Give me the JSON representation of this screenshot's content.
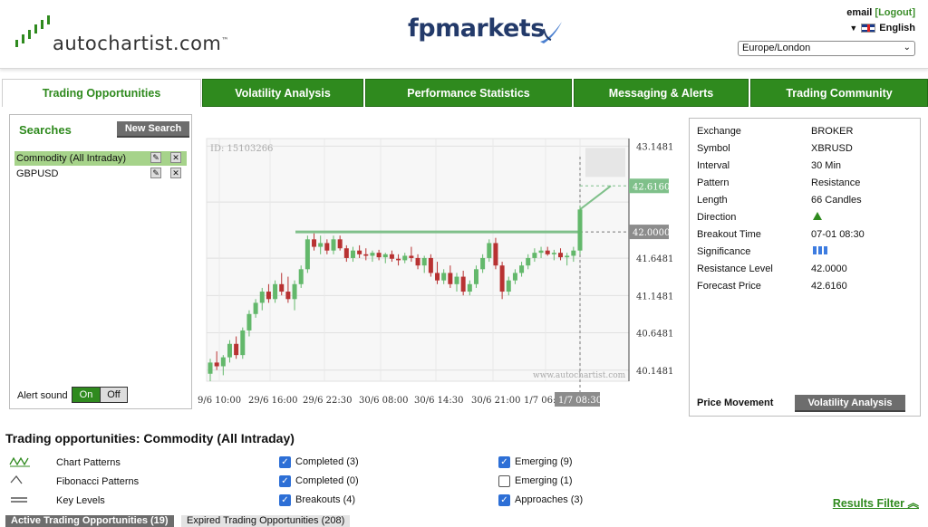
{
  "header": {
    "logo_text": "autochartist.com",
    "logo_tm": "™",
    "broker_logo": "fpmarkets",
    "user": "email",
    "logout": "[Logout]",
    "language": "English",
    "timezone": "Europe/London"
  },
  "tabs": [
    {
      "label": "Trading Opportunities",
      "active": true
    },
    {
      "label": "Volatility Analysis"
    },
    {
      "label": "Performance Statistics"
    },
    {
      "label": "Messaging & Alerts"
    },
    {
      "label": "Trading Community"
    }
  ],
  "searches": {
    "title": "Searches",
    "new_search": "New Search",
    "items": [
      {
        "label": "Commodity (All Intraday)",
        "selected": true
      },
      {
        "label": "GBPUSD"
      }
    ],
    "edit_icon": "pencil-icon",
    "delete_icon": "close-icon",
    "alert_sound_label": "Alert sound",
    "on": "On",
    "off": "Off"
  },
  "chart_data": {
    "type": "candlestick",
    "id_label": "ID: 15103266",
    "watermark": "www.autochartist.com",
    "x_tick_labels": [
      "9/6 10:00",
      "29/6 16:00",
      "29/6 22:30",
      "30/6 08:00",
      "30/6 14:30",
      "30/6 21:00",
      "1/7 06:0",
      "1/7 08:30"
    ],
    "y_tick_labels": [
      "43.1481",
      "41.6481",
      "41.1481",
      "40.6481",
      "40.1481"
    ],
    "ylim": [
      40.0,
      43.25
    ],
    "resistance_level": 42.0,
    "resistance_label": "42.0000",
    "forecast_price": 42.616,
    "forecast_label": "42.6160",
    "breakout_label": "1/7 08:30",
    "candles": [
      [
        40.1,
        40.3,
        40.0,
        40.25
      ],
      [
        40.25,
        40.4,
        40.15,
        40.2
      ],
      [
        40.2,
        40.35,
        40.08,
        40.32
      ],
      [
        40.32,
        40.55,
        40.25,
        40.5
      ],
      [
        40.5,
        40.6,
        40.3,
        40.35
      ],
      [
        40.35,
        40.72,
        40.3,
        40.68
      ],
      [
        40.68,
        40.95,
        40.6,
        40.9
      ],
      [
        40.9,
        41.1,
        40.85,
        41.05
      ],
      [
        41.05,
        41.25,
        40.95,
        41.2
      ],
      [
        41.2,
        41.3,
        41.05,
        41.1
      ],
      [
        41.1,
        41.35,
        41.05,
        41.3
      ],
      [
        41.3,
        41.45,
        41.15,
        41.2
      ],
      [
        41.2,
        41.4,
        41.05,
        41.1
      ],
      [
        41.1,
        41.35,
        40.95,
        41.3
      ],
      [
        41.3,
        41.55,
        41.25,
        41.5
      ],
      [
        41.5,
        41.95,
        41.45,
        41.9
      ],
      [
        41.9,
        41.98,
        41.75,
        41.8
      ],
      [
        41.8,
        41.95,
        41.7,
        41.85
      ],
      [
        41.85,
        41.9,
        41.7,
        41.75
      ],
      [
        41.75,
        41.95,
        41.7,
        41.9
      ],
      [
        41.9,
        41.95,
        41.75,
        41.78
      ],
      [
        41.78,
        41.82,
        41.6,
        41.65
      ],
      [
        41.65,
        41.8,
        41.6,
        41.75
      ],
      [
        41.75,
        41.82,
        41.65,
        41.7
      ],
      [
        41.7,
        41.78,
        41.62,
        41.68
      ],
      [
        41.68,
        41.75,
        41.6,
        41.72
      ],
      [
        41.72,
        41.76,
        41.62,
        41.66
      ],
      [
        41.66,
        41.72,
        41.58,
        41.7
      ],
      [
        41.7,
        41.75,
        41.6,
        41.64
      ],
      [
        41.64,
        41.7,
        41.55,
        41.62
      ],
      [
        41.62,
        41.72,
        41.58,
        41.68
      ],
      [
        41.68,
        41.8,
        41.6,
        41.65
      ],
      [
        41.65,
        41.7,
        41.5,
        41.55
      ],
      [
        41.55,
        41.68,
        41.45,
        41.65
      ],
      [
        41.65,
        41.7,
        41.4,
        41.45
      ],
      [
        41.45,
        41.6,
        41.3,
        41.35
      ],
      [
        41.35,
        41.5,
        41.3,
        41.45
      ],
      [
        41.45,
        41.55,
        41.25,
        41.3
      ],
      [
        41.3,
        41.45,
        41.2,
        41.4
      ],
      [
        41.4,
        41.48,
        41.15,
        41.2
      ],
      [
        41.2,
        41.35,
        41.15,
        41.3
      ],
      [
        41.3,
        41.55,
        41.25,
        41.5
      ],
      [
        41.5,
        41.7,
        41.45,
        41.65
      ],
      [
        41.65,
        41.9,
        41.6,
        41.85
      ],
      [
        41.85,
        41.92,
        41.5,
        41.55
      ],
      [
        41.55,
        41.6,
        41.1,
        41.2
      ],
      [
        41.2,
        41.4,
        41.15,
        41.35
      ],
      [
        41.35,
        41.5,
        41.3,
        41.45
      ],
      [
        41.45,
        41.6,
        41.4,
        41.55
      ],
      [
        41.55,
        41.7,
        41.5,
        41.65
      ],
      [
        41.65,
        41.78,
        41.6,
        41.72
      ],
      [
        41.72,
        41.8,
        41.65,
        41.75
      ],
      [
        41.75,
        41.8,
        41.68,
        41.7
      ],
      [
        41.7,
        41.76,
        41.62,
        41.72
      ],
      [
        41.72,
        41.78,
        41.62,
        41.66
      ],
      [
        41.66,
        41.72,
        41.55,
        41.68
      ],
      [
        41.68,
        41.8,
        41.6,
        41.75
      ],
      [
        41.75,
        42.35,
        41.7,
        42.3
      ]
    ]
  },
  "details": {
    "rows": [
      {
        "k": "Exchange",
        "v": "BROKER"
      },
      {
        "k": "Symbol",
        "v": "XBRUSD"
      },
      {
        "k": "Interval",
        "v": "30 Min"
      },
      {
        "k": "Pattern",
        "v": "Resistance"
      },
      {
        "k": "Length",
        "v": "66 Candles"
      },
      {
        "k": "Direction",
        "v": ""
      },
      {
        "k": "Breakout Time",
        "v": "07-01 08:30"
      },
      {
        "k": "Significance",
        "v": ""
      },
      {
        "k": "Resistance Level",
        "v": "42.0000"
      },
      {
        "k": "Forecast Price",
        "v": "42.6160"
      }
    ],
    "direction_icon": "up-triangle-icon",
    "significance_bars": 3,
    "price_movement": "Price Movement",
    "volatility_button": "Volatility Analysis"
  },
  "results": {
    "title": "Trading opportunities: Commodity (All Intraday)",
    "categories": [
      {
        "label": "Chart Patterns",
        "icon": "chart-pattern-icon"
      },
      {
        "label": "Fibonacci Patterns",
        "icon": "fibonacci-icon"
      },
      {
        "label": "Key Levels",
        "icon": "key-levels-icon"
      }
    ],
    "col1": [
      {
        "label": "Completed (3)",
        "checked": true
      },
      {
        "label": "Completed (0)",
        "checked": true
      },
      {
        "label": "Breakouts (4)",
        "checked": true
      }
    ],
    "col2": [
      {
        "label": "Emerging (9)",
        "checked": true
      },
      {
        "label": "Emerging (1)",
        "checked": false
      },
      {
        "label": "Approaches (3)",
        "checked": true
      }
    ],
    "results_filter": "Results Filter",
    "tab_active": "Active Trading Opportunities (19)",
    "tab_expired": "Expired Trading Opportunities (208)"
  },
  "colors": {
    "brand_green": "#2f8a1e",
    "bull": "#63b86b",
    "bear": "#b83232"
  }
}
